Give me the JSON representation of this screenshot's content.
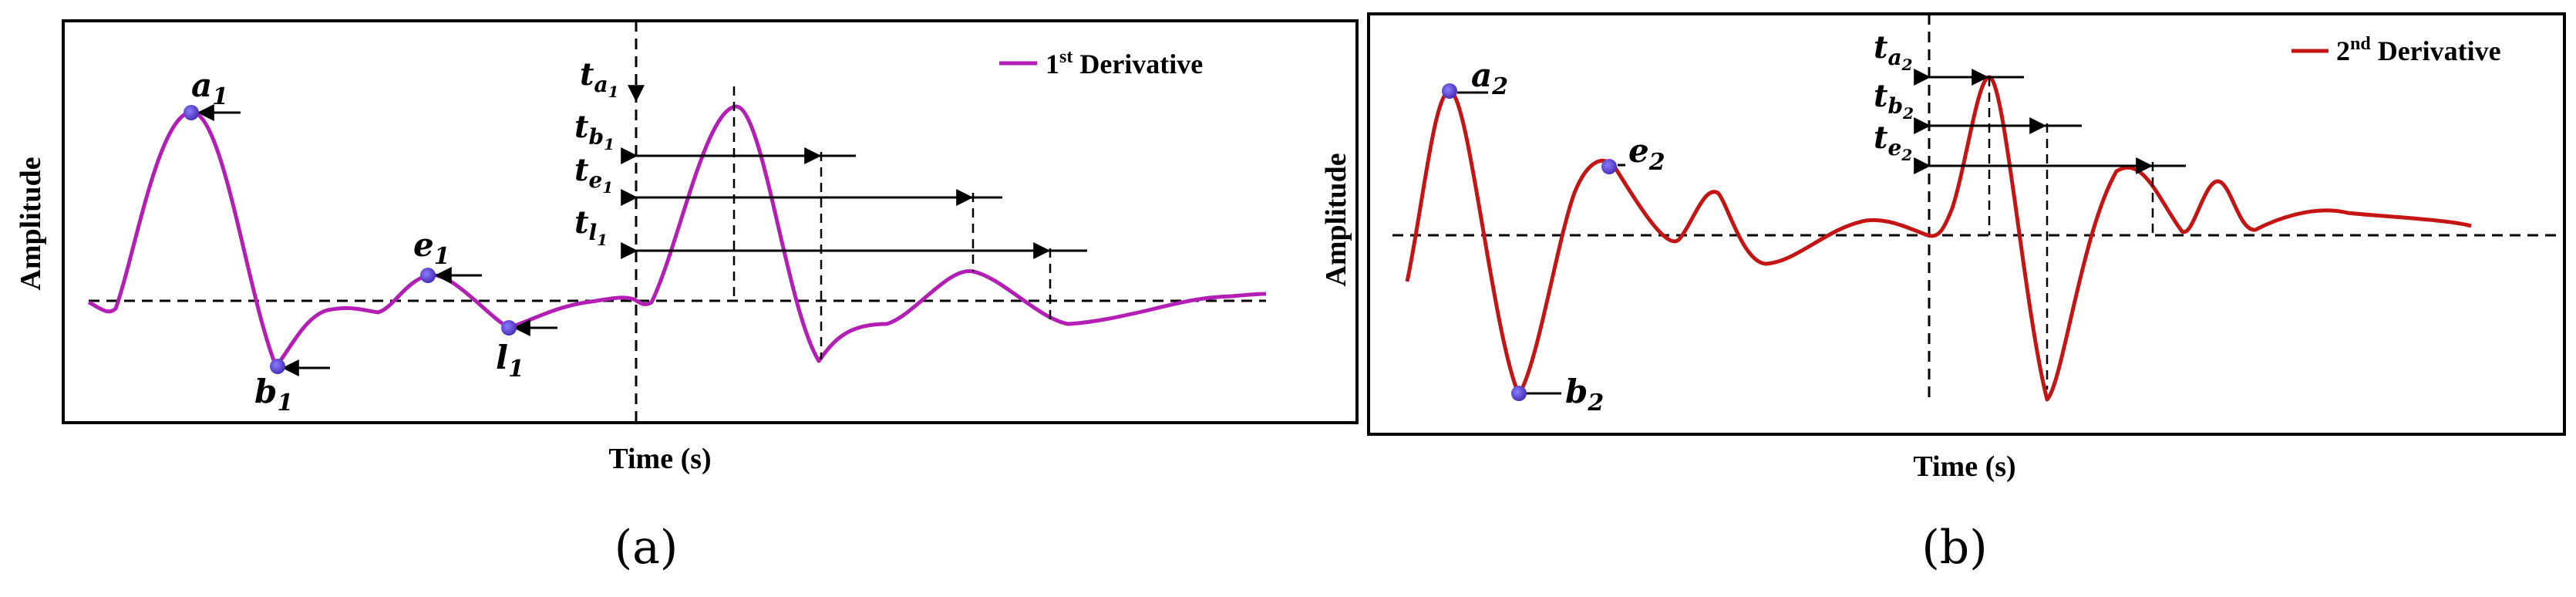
{
  "chart_data": [
    {
      "type": "line",
      "panel_label": "(a)",
      "xlabel": "Time (s)",
      "ylabel": "Amplitude",
      "legend": {
        "name_base": "1",
        "name_sup": "st",
        "name_rest": " Derivative",
        "color": "#b31eb4",
        "placement": "top-right"
      },
      "points": [
        {
          "label": "a",
          "sub": "1"
        },
        {
          "label": "b",
          "sub": "1"
        },
        {
          "label": "e",
          "sub": "1"
        },
        {
          "label": "l",
          "sub": "1"
        }
      ],
      "time_markers": [
        {
          "label": "t",
          "sub": "a",
          "subsub": "1"
        },
        {
          "label": "t",
          "sub": "b",
          "subsub": "1"
        },
        {
          "label": "t",
          "sub": "e",
          "subsub": "1"
        },
        {
          "label": "t",
          "sub": "l",
          "subsub": "1"
        }
      ]
    },
    {
      "type": "line",
      "panel_label": "(b)",
      "xlabel": "Time (s)",
      "ylabel": "Amplitude",
      "legend": {
        "name_base": "2",
        "name_sup": "nd",
        "name_rest": " Derivative",
        "color": "#c41414",
        "placement": "top-right"
      },
      "points": [
        {
          "label": "a",
          "sub": "2"
        },
        {
          "label": "b",
          "sub": "2"
        },
        {
          "label": "e",
          "sub": "2"
        }
      ],
      "time_markers": [
        {
          "label": "t",
          "sub": "a",
          "subsub": "2"
        },
        {
          "label": "t",
          "sub": "b",
          "subsub": "2"
        },
        {
          "label": "t",
          "sub": "e",
          "subsub": "2"
        }
      ]
    }
  ]
}
